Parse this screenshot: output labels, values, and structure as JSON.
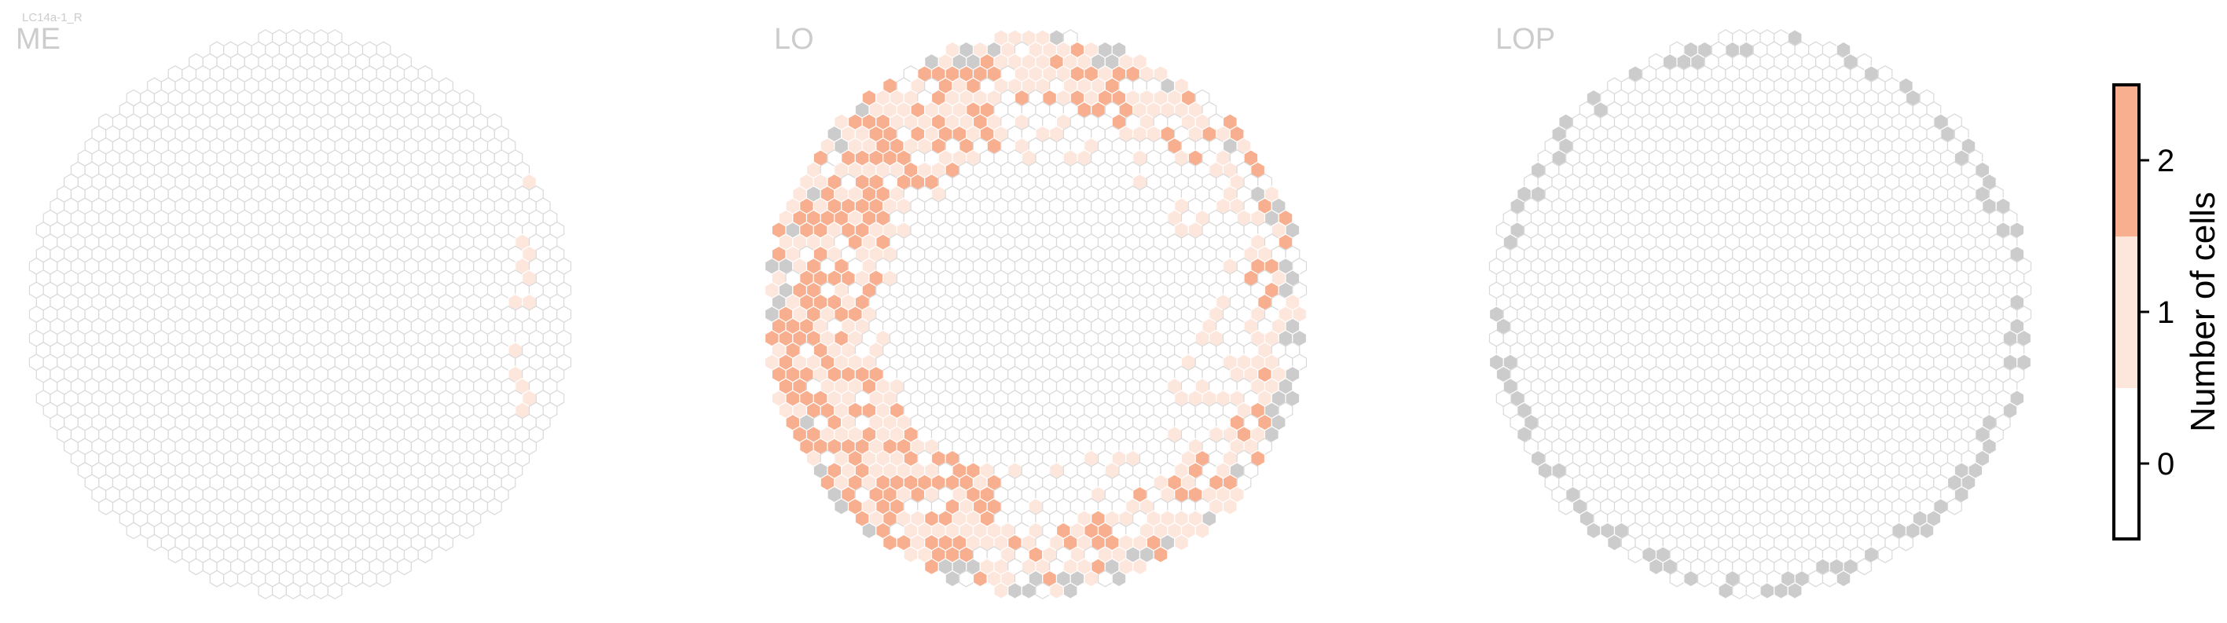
{
  "subtitle": "LC14a-1_R",
  "panels": [
    {
      "label": "ME"
    },
    {
      "label": "LO"
    },
    {
      "label": "LOP"
    }
  ],
  "colorbar": {
    "title": "Number of cells",
    "ticks": [
      "0",
      "1",
      "2"
    ],
    "colors": {
      "0": "#ffffff",
      "1": "#fde6dc",
      "2": "#f8af8f"
    }
  },
  "colors": {
    "hex_outline": "#d9d9d9",
    "hex_gray_fill": "#cccccc",
    "label_gray": "#cccccc"
  },
  "chart_data": {
    "type": "heatmap",
    "description_of_encoding": "hexagonal eye map per neuropil; values are number of cells per column (0, 1, 2)",
    "panels": [
      {
        "name": "ME",
        "values_present": [
          0,
          1
        ],
        "highlighted_columns_with_1": 6
      },
      {
        "name": "LO",
        "values_present": [
          0,
          1,
          2
        ],
        "boundary_columns_gray": true
      },
      {
        "name": "LOP",
        "values_present": [
          0
        ],
        "boundary_columns_gray": true
      }
    ],
    "legend": "colorbar right",
    "clim": [
      -0.5,
      2.5
    ]
  }
}
